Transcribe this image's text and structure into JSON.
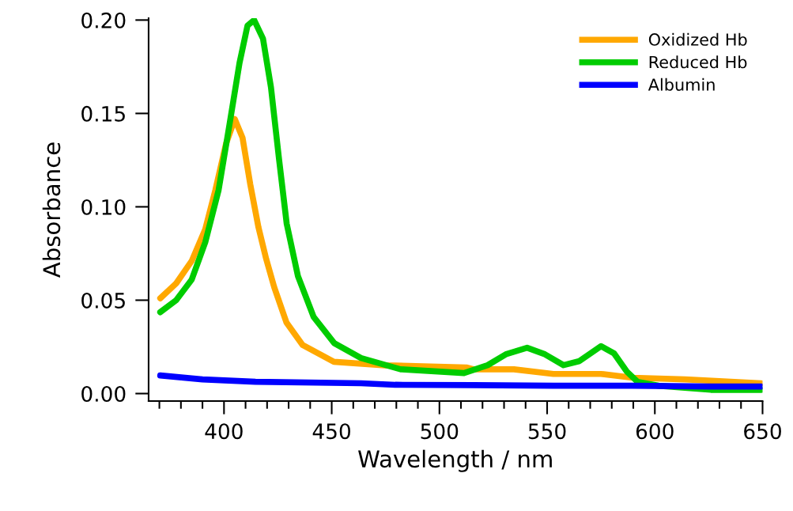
{
  "chart_data": {
    "type": "line",
    "xlabel": "Wavelength / nm",
    "ylabel": "Absorbance",
    "xlim": [
      365,
      650
    ],
    "ylim": [
      -0.004,
      0.201
    ],
    "xticks": [
      {
        "value": 370,
        "label": null
      },
      {
        "value": 380,
        "label": null
      },
      {
        "value": 390,
        "label": null
      },
      400,
      {
        "value": 410,
        "label": null
      },
      {
        "value": 420,
        "label": null
      },
      {
        "value": 430,
        "label": null
      },
      {
        "value": 440,
        "label": null
      },
      450,
      {
        "value": 460,
        "label": null
      },
      {
        "value": 470,
        "label": null
      },
      {
        "value": 480,
        "label": null
      },
      {
        "value": 490,
        "label": null
      },
      500,
      {
        "value": 510,
        "label": null
      },
      {
        "value": 520,
        "label": null
      },
      {
        "value": 530,
        "label": null
      },
      {
        "value": 540,
        "label": null
      },
      550,
      {
        "value": 560,
        "label": null
      },
      {
        "value": 570,
        "label": null
      },
      {
        "value": 580,
        "label": null
      },
      {
        "value": 590,
        "label": null
      },
      600,
      {
        "value": 610,
        "label": null
      },
      {
        "value": 620,
        "label": null
      },
      {
        "value": 630,
        "label": null
      },
      {
        "value": 640,
        "label": null
      },
      650
    ],
    "yticks": [
      {
        "value": 0,
        "label": "0.00"
      },
      {
        "value": 0.05,
        "label": "0.05"
      },
      {
        "value": 0.1,
        "label": "0.10"
      },
      {
        "value": 0.15,
        "label": "0.15"
      },
      {
        "value": 0.2,
        "label": "0.20"
      }
    ],
    "grid": false,
    "legend": "top right",
    "marker": "none",
    "line_style": "solid",
    "series": [
      {
        "name": "Oxidized Hb",
        "color": "#ffa800",
        "x": [
          370.4,
          377.8,
          385,
          391.3,
          396,
          401,
          405,
          408.6,
          412.2,
          416,
          419.6,
          423.3,
          429,
          436.5,
          451,
          476,
          479.5,
          512.5,
          516,
          534.6,
          552.9,
          575,
          589.6,
          614,
          649.4
        ],
        "values": [
          0.051,
          0.059,
          0.071,
          0.088,
          0.109,
          0.134,
          0.147,
          0.137,
          0.112,
          0.089,
          0.072,
          0.057,
          0.038,
          0.026,
          0.017,
          0.015,
          0.015,
          0.014,
          0.013,
          0.013,
          0.0105,
          0.0105,
          0.0085,
          0.0076,
          0.0055
        ]
      },
      {
        "name": "Reduced Hb",
        "color": "#00cc00",
        "x": [
          370.4,
          377.8,
          385,
          391.3,
          397.5,
          402.4,
          407.2,
          410.9,
          414,
          418.1,
          421.8,
          425.5,
          429.1,
          434.3,
          441.6,
          451.2,
          463.6,
          482,
          511.4,
          522.4,
          530.8,
          540.7,
          549,
          557.6,
          565,
          575,
          581,
          587,
          592,
          601.7,
          626,
          649.4
        ],
        "values": [
          0.0436,
          0.05,
          0.061,
          0.081,
          0.109,
          0.143,
          0.177,
          0.197,
          0.2,
          0.19,
          0.164,
          0.126,
          0.091,
          0.063,
          0.041,
          0.027,
          0.019,
          0.013,
          0.011,
          0.0152,
          0.021,
          0.0245,
          0.021,
          0.0152,
          0.0174,
          0.0254,
          0.0216,
          0.0118,
          0.0063,
          0.0042,
          0.002,
          0.002
        ]
      },
      {
        "name": "Albumin",
        "color": "#0000ff",
        "x": [
          370.4,
          390,
          414.6,
          463.6,
          479.5,
          516,
          553,
          589.6,
          626,
          649.4
        ],
        "values": [
          0.0097,
          0.0076,
          0.0063,
          0.0055,
          0.0047,
          0.0045,
          0.0042,
          0.0042,
          0.0038,
          0.0038
        ]
      }
    ]
  }
}
